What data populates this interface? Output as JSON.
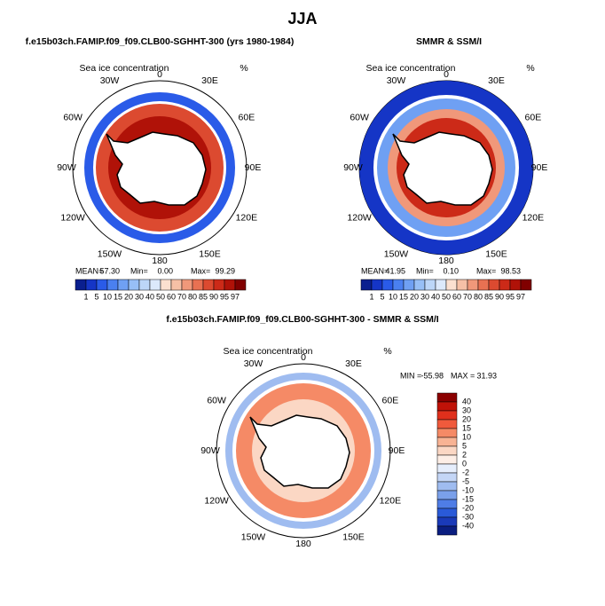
{
  "title": "JJA",
  "panels": [
    {
      "title": "f.e15b03ch.FAMIP.f09_f09.CLB00-SGHHT-300 (yrs 1980-1984)",
      "map_label": "Sea ice concentration",
      "units": "%",
      "lon_labels": [
        "0",
        "30E",
        "60E",
        "90E",
        "120E",
        "150E",
        "180",
        "150W",
        "120W",
        "90W",
        "60W",
        "30W"
      ],
      "stats": {
        "mean_label": "MEAN=",
        "mean": "57.30",
        "min_label": "Min=",
        "min": "0.00",
        "max_label": "Max=",
        "max": "99.29"
      },
      "colorbar": {
        "labels": [
          1,
          5,
          10,
          15,
          20,
          30,
          40,
          50,
          60,
          70,
          80,
          85,
          90,
          95,
          97
        ],
        "colors": [
          "#0a1f8f",
          "#1535c6",
          "#2a5be8",
          "#4a80f0",
          "#6fa0f3",
          "#97bff6",
          "#bcd6f8",
          "#dce9fb",
          "#fbe0d0",
          "#f6c0a6",
          "#f0987a",
          "#e87152",
          "#dc4a30",
          "#cc2a18",
          "#b01208",
          "#800000"
        ]
      }
    },
    {
      "title": "SMMR & SSM/I",
      "map_label": "Sea ice concentration",
      "units": "%",
      "lon_labels": [
        "0",
        "30E",
        "60E",
        "90E",
        "120E",
        "150E",
        "180",
        "150W",
        "120W",
        "90W",
        "60W",
        "30W"
      ],
      "stats": {
        "mean_label": "MEAN=",
        "mean": "41.95",
        "min_label": "Min=",
        "min": "0.10",
        "max_label": "Max=",
        "max": "98.53"
      },
      "colorbar": {
        "labels": [
          1,
          5,
          10,
          15,
          20,
          30,
          40,
          50,
          60,
          70,
          80,
          85,
          90,
          95,
          97
        ],
        "colors": [
          "#0a1f8f",
          "#1535c6",
          "#2a5be8",
          "#4a80f0",
          "#6fa0f3",
          "#97bff6",
          "#bcd6f8",
          "#dce9fb",
          "#fbe0d0",
          "#f6c0a6",
          "#f0987a",
          "#e87152",
          "#dc4a30",
          "#cc2a18",
          "#b01208",
          "#800000"
        ]
      }
    }
  ],
  "diff": {
    "title": "f.e15b03ch.FAMIP.f09_f09.CLB00-SGHHT-300 - SMMR & SSM/I",
    "map_label": "Sea ice concentration",
    "units": "%",
    "lon_labels": [
      "0",
      "30E",
      "60E",
      "90E",
      "120E",
      "150E",
      "180",
      "150W",
      "120W",
      "90W",
      "60W",
      "30W"
    ],
    "stats": {
      "min_label": "MIN =",
      "min": "-55.98",
      "max_label": "MAX =",
      "max": "31.93"
    },
    "colorbar": {
      "labels": [
        40,
        30,
        20,
        15,
        10,
        5,
        2,
        0,
        -2,
        -5,
        -10,
        -15,
        -20,
        -30,
        -40
      ],
      "colors": [
        "#8b0000",
        "#c01208",
        "#e0301c",
        "#f05a3c",
        "#f58a66",
        "#f8b394",
        "#fbd7c4",
        "#fdeee6",
        "#e6eefc",
        "#c4d6f6",
        "#9fbcf0",
        "#7aa0ea",
        "#4f7de6",
        "#2a5ad8",
        "#1a3ab8",
        "#0a1e80"
      ]
    }
  }
}
